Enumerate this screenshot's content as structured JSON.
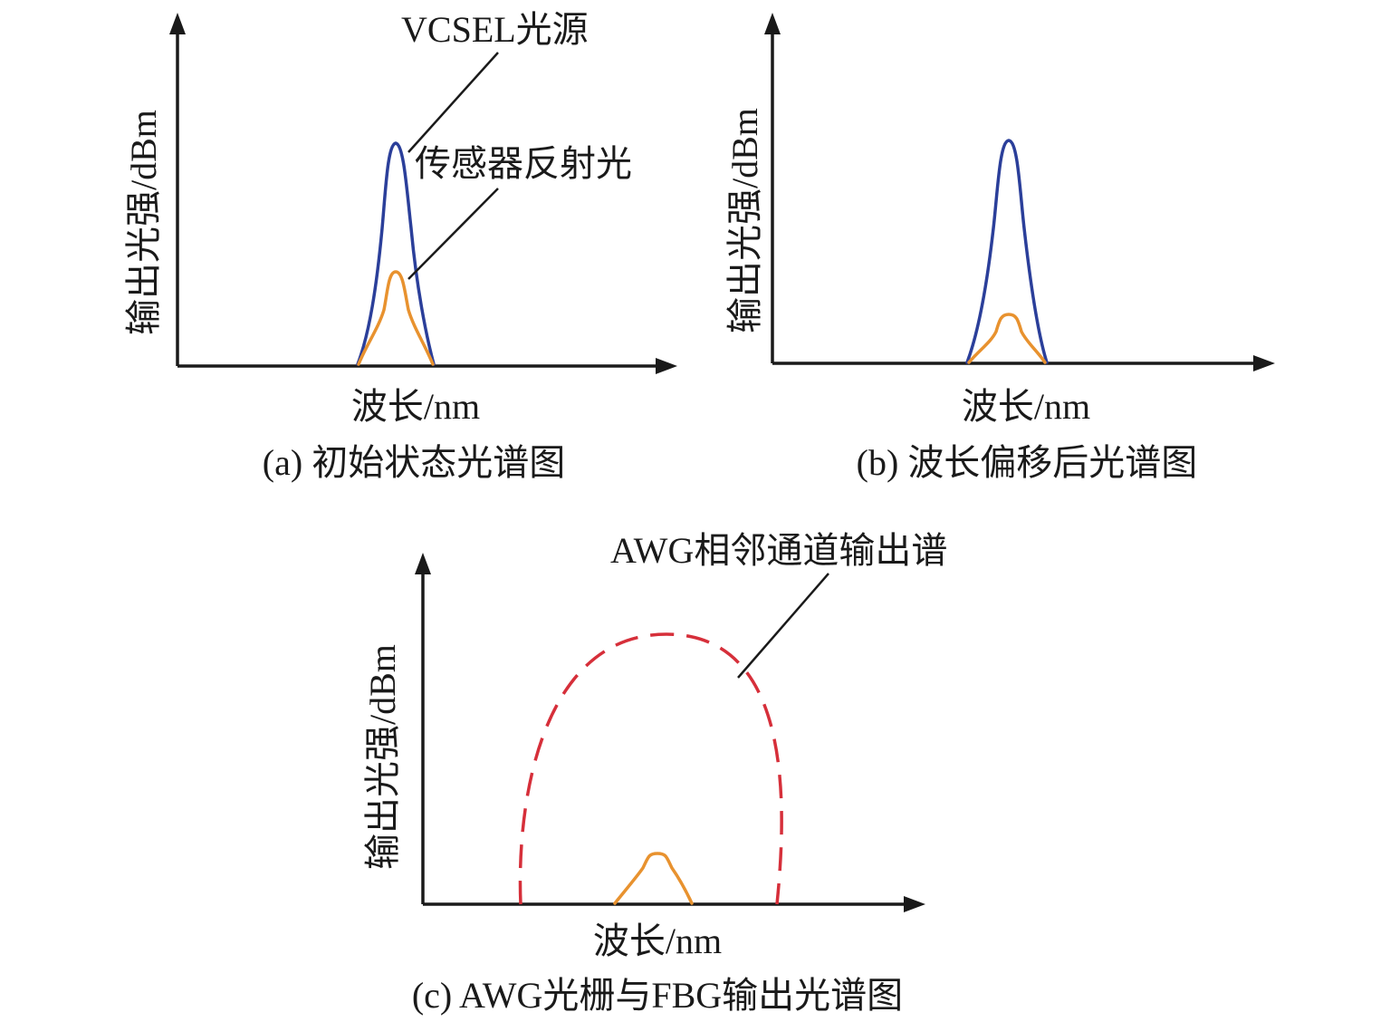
{
  "colors": {
    "axis": "#1a1a1a",
    "source_curve": "#2b3f9a",
    "reflected_curve": "#e8922f",
    "awg_curve": "#d62f3a",
    "background": "#ffffff"
  },
  "panel_a": {
    "caption": "(a) 初始状态光谱图",
    "y_axis_label": "输出光强/dBm",
    "x_axis_label": "波长/nm",
    "callout_source": "VCSEL光源",
    "callout_reflected": "传感器反射光"
  },
  "panel_b": {
    "caption": "(b) 波长偏移后光谱图",
    "y_axis_label": "输出光强/dBm",
    "x_axis_label": "波长/nm"
  },
  "panel_c": {
    "caption": "(c) AWG光栅与FBG输出光谱图",
    "y_axis_label": "输出光强/dBm",
    "x_axis_label": "波长/nm",
    "callout_awg": "AWG相邻通道输出谱"
  }
}
